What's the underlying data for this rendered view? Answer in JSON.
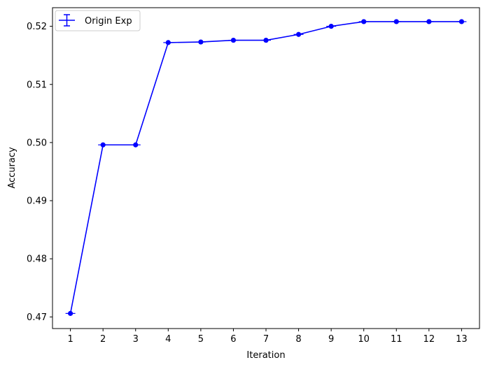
{
  "chart_data": {
    "type": "line",
    "xlabel": "Iteration",
    "ylabel": "Accuracy",
    "x": [
      1,
      2,
      3,
      4,
      5,
      6,
      7,
      8,
      9,
      10,
      11,
      12,
      13
    ],
    "xlim": [
      0.45,
      13.55
    ],
    "ylim": [
      0.468,
      0.5232
    ],
    "yticks": [
      0.47,
      0.48,
      0.49,
      0.5,
      0.51,
      0.52
    ],
    "ytick_labels": [
      "0.47",
      "0.48",
      "0.49",
      "0.50",
      "0.51",
      "0.52"
    ],
    "xtick_labels": [
      "1",
      "2",
      "3",
      "4",
      "5",
      "6",
      "7",
      "8",
      "9",
      "10",
      "11",
      "12",
      "13"
    ],
    "legend_position": "top-left",
    "grid": false,
    "series": [
      {
        "name": "Origin Exp",
        "color": "#0000ff",
        "marker": "circle",
        "error_bars": true,
        "values": [
          0.4706,
          0.4996,
          0.4996,
          0.5172,
          0.5173,
          0.5176,
          0.5176,
          0.5186,
          0.52,
          0.5208,
          0.5208,
          0.5208,
          0.5208
        ]
      }
    ]
  }
}
